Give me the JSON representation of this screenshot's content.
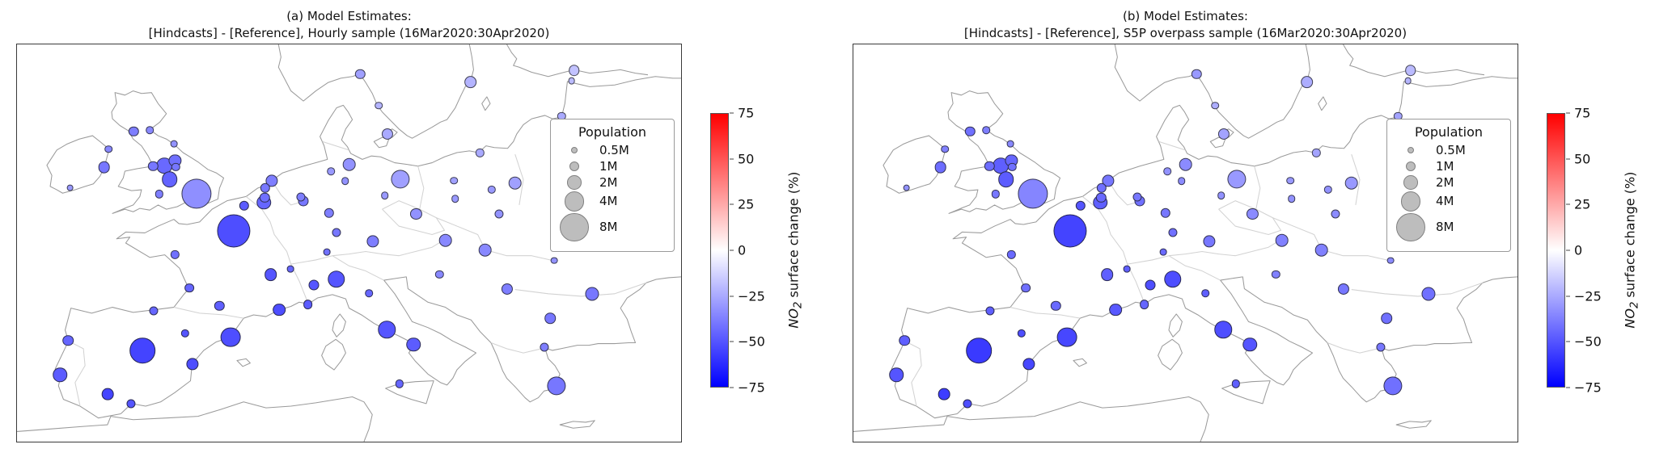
{
  "figure": {
    "panels": [
      {
        "id": "a",
        "title_line1": "(a) Model Estimates:",
        "title_line2": "[Hindcasts] - [Reference], Hourly sample (16Mar2020:30Apr2020)"
      },
      {
        "id": "b",
        "title_line1": "(b) Model Estimates:",
        "title_line2": "[Hindcasts] - [Reference], S5P overpass sample (16Mar2020:30Apr2020)"
      }
    ]
  },
  "legend": {
    "title": "Population",
    "items": [
      {
        "label": "0.5M",
        "pop": 0.5
      },
      {
        "label": "1M",
        "pop": 1
      },
      {
        "label": "2M",
        "pop": 2
      },
      {
        "label": "4M",
        "pop": 4
      },
      {
        "label": "8M",
        "pop": 8
      }
    ]
  },
  "colorbar": {
    "label_math": "NO",
    "label_sub": "2",
    "label_rest": " surface change (%)",
    "min": -75,
    "max": 75,
    "color_top": "#ff0000",
    "color_mid": "#ffffff",
    "color_bottom": "#0000ff",
    "ticks": [
      "75",
      "50",
      "25",
      "0",
      "−25",
      "−50",
      "−75"
    ]
  },
  "style": {
    "bubble_scale": 6.2
  },
  "chart_data": [
    {
      "id": "a",
      "type": "scatter",
      "subtype": "bubble-map",
      "title": "(a) Model Estimates: [Hindcasts] - [Reference], Hourly sample (16Mar2020:30Apr2020)",
      "region": "Europe",
      "size_legend_title": "Population",
      "size_legend_values_millions": [
        0.5,
        1,
        2,
        4,
        8
      ],
      "color_label": "NO2 surface change (%)",
      "color_range": [
        -75,
        75
      ],
      "colormap": "blue-white-red",
      "point_columns": [
        "x_pct_of_map",
        "y_pct_of_map",
        "population_millions",
        "no2_change_pct"
      ],
      "points": [
        [
          17.6,
          21.9,
          1.0,
          -38
        ],
        [
          20.0,
          21.6,
          0.6,
          -35
        ],
        [
          23.6,
          25.1,
          0.5,
          -32
        ],
        [
          23.8,
          29.3,
          1.5,
          -42
        ],
        [
          22.2,
          30.5,
          2.5,
          -44
        ],
        [
          20.5,
          30.7,
          1.0,
          -40
        ],
        [
          23.9,
          30.8,
          0.7,
          -40
        ],
        [
          23.0,
          34.0,
          2.5,
          -46
        ],
        [
          27.0,
          37.5,
          9.0,
          -33
        ],
        [
          21.4,
          37.7,
          0.7,
          -38
        ],
        [
          13.1,
          30.9,
          1.4,
          -40
        ],
        [
          13.8,
          26.4,
          0.6,
          -35
        ],
        [
          8.0,
          36.1,
          0.5,
          -30
        ],
        [
          32.6,
          47.0,
          11.0,
          -52
        ],
        [
          34.2,
          40.6,
          1.0,
          -48
        ],
        [
          23.8,
          52.9,
          0.7,
          -42
        ],
        [
          26.0,
          61.3,
          0.9,
          -45
        ],
        [
          30.5,
          65.8,
          1.0,
          -47
        ],
        [
          38.2,
          58.0,
          1.6,
          -50
        ],
        [
          39.5,
          66.8,
          1.6,
          -52
        ],
        [
          43.8,
          65.4,
          0.9,
          -48
        ],
        [
          37.2,
          39.8,
          2.0,
          -45
        ],
        [
          37.3,
          38.6,
          1.0,
          -42
        ],
        [
          37.4,
          36.1,
          1.0,
          -40
        ],
        [
          38.4,
          34.4,
          1.5,
          -38
        ],
        [
          43.1,
          39.5,
          1.1,
          -40
        ],
        [
          42.7,
          38.5,
          0.8,
          -38
        ],
        [
          47.0,
          42.5,
          1.0,
          -38
        ],
        [
          48.1,
          47.3,
          0.8,
          -40
        ],
        [
          53.6,
          49.5,
          1.5,
          -38
        ],
        [
          46.7,
          52.3,
          0.5,
          -42
        ],
        [
          41.2,
          56.5,
          0.5,
          -45
        ],
        [
          50.0,
          30.2,
          1.8,
          -32
        ],
        [
          47.3,
          31.9,
          0.6,
          -30
        ],
        [
          49.4,
          34.4,
          0.6,
          -32
        ],
        [
          57.7,
          33.9,
          3.5,
          -28
        ],
        [
          55.4,
          38.1,
          0.6,
          -30
        ],
        [
          60.1,
          42.6,
          1.3,
          -32
        ],
        [
          64.5,
          49.3,
          1.8,
          -35
        ],
        [
          55.8,
          22.6,
          1.3,
          -25
        ],
        [
          51.7,
          7.5,
          1.0,
          -28
        ],
        [
          68.3,
          9.5,
          1.6,
          -22
        ],
        [
          54.5,
          15.4,
          0.6,
          -22
        ],
        [
          83.9,
          6.5,
          1.2,
          -18
        ],
        [
          82.0,
          18.0,
          0.7,
          -25
        ],
        [
          84.7,
          26.1,
          0.5,
          -25
        ],
        [
          69.7,
          27.3,
          0.7,
          -25
        ],
        [
          75.0,
          34.9,
          1.8,
          -28
        ],
        [
          71.5,
          36.6,
          0.7,
          -30
        ],
        [
          72.6,
          42.7,
          0.8,
          -32
        ],
        [
          66.0,
          38.9,
          0.6,
          -30
        ],
        [
          65.8,
          34.3,
          0.6,
          -28
        ],
        [
          70.5,
          51.8,
          1.8,
          -35
        ],
        [
          63.6,
          57.9,
          0.7,
          -35
        ],
        [
          73.8,
          61.5,
          1.3,
          -38
        ],
        [
          86.6,
          62.8,
          1.9,
          -40
        ],
        [
          80.3,
          69.0,
          1.2,
          -40
        ],
        [
          79.4,
          76.3,
          0.8,
          -38
        ],
        [
          81.2,
          85.9,
          3.5,
          -40
        ],
        [
          48.1,
          59.1,
          3.0,
          -50
        ],
        [
          44.7,
          60.5,
          1.1,
          -50
        ],
        [
          53.0,
          62.6,
          0.6,
          -45
        ],
        [
          55.7,
          71.8,
          3.0,
          -50
        ],
        [
          59.7,
          75.6,
          2.0,
          -48
        ],
        [
          57.6,
          85.4,
          0.7,
          -45
        ],
        [
          18.9,
          77.1,
          6.5,
          -55
        ],
        [
          32.2,
          73.7,
          4.0,
          -52
        ],
        [
          26.4,
          80.5,
          1.5,
          -52
        ],
        [
          13.7,
          88.0,
          1.4,
          -55
        ],
        [
          17.2,
          90.4,
          0.8,
          -50
        ],
        [
          25.3,
          72.7,
          0.7,
          -50
        ],
        [
          20.6,
          67.0,
          0.8,
          -45
        ],
        [
          6.5,
          83.2,
          2.0,
          -48
        ],
        [
          7.7,
          74.5,
          1.2,
          -45
        ],
        [
          80.9,
          54.4,
          0.5,
          -32
        ],
        [
          89.9,
          29.0,
          1.8,
          -22
        ],
        [
          96.6,
          41.3,
          2.8,
          -28
        ],
        [
          81.9,
          43.5,
          0.7,
          -28
        ],
        [
          83.5,
          9.1,
          0.5,
          -20
        ]
      ]
    },
    {
      "id": "b",
      "type": "scatter",
      "subtype": "bubble-map",
      "title": "(b) Model Estimates: [Hindcasts] - [Reference], S5P overpass sample (16Mar2020:30Apr2020)",
      "region": "Europe",
      "size_legend_title": "Population",
      "size_legend_values_millions": [
        0.5,
        1,
        2,
        4,
        8
      ],
      "color_label": "NO2 surface change (%)",
      "color_range": [
        -75,
        75
      ],
      "colormap": "blue-white-red",
      "point_columns": [
        "x_pct_of_map",
        "y_pct_of_map",
        "population_millions",
        "no2_change_pct"
      ],
      "points": [
        [
          17.6,
          21.9,
          1.0,
          -42
        ],
        [
          20.0,
          21.6,
          0.6,
          -38
        ],
        [
          23.6,
          25.1,
          0.5,
          -35
        ],
        [
          23.8,
          29.3,
          1.5,
          -45
        ],
        [
          22.2,
          30.5,
          2.5,
          -47
        ],
        [
          20.5,
          30.7,
          1.0,
          -43
        ],
        [
          23.9,
          30.8,
          0.7,
          -42
        ],
        [
          23.0,
          34.0,
          2.5,
          -48
        ],
        [
          27.0,
          37.5,
          9.0,
          -36
        ],
        [
          21.4,
          37.7,
          0.7,
          -40
        ],
        [
          13.1,
          30.9,
          1.4,
          -43
        ],
        [
          13.8,
          26.4,
          0.6,
          -37
        ],
        [
          8.0,
          36.1,
          0.5,
          -32
        ],
        [
          32.6,
          47.0,
          11.0,
          -55
        ],
        [
          34.2,
          40.6,
          1.0,
          -50
        ],
        [
          23.8,
          52.9,
          0.7,
          -44
        ],
        [
          26.0,
          61.3,
          0.9,
          -42
        ],
        [
          30.5,
          65.8,
          1.0,
          -44
        ],
        [
          38.2,
          58.0,
          1.6,
          -47
        ],
        [
          39.5,
          66.8,
          1.6,
          -49
        ],
        [
          43.8,
          65.4,
          0.9,
          -45
        ],
        [
          37.2,
          39.8,
          2.0,
          -47
        ],
        [
          37.3,
          38.6,
          1.0,
          -44
        ],
        [
          37.4,
          36.1,
          1.0,
          -42
        ],
        [
          38.4,
          34.4,
          1.5,
          -40
        ],
        [
          43.1,
          39.5,
          1.1,
          -42
        ],
        [
          42.7,
          38.5,
          0.8,
          -40
        ],
        [
          47.0,
          42.5,
          1.0,
          -40
        ],
        [
          48.1,
          47.3,
          0.8,
          -42
        ],
        [
          53.6,
          49.5,
          1.5,
          -40
        ],
        [
          46.7,
          52.3,
          0.5,
          -44
        ],
        [
          41.2,
          56.5,
          0.5,
          -47
        ],
        [
          50.0,
          30.2,
          1.8,
          -34
        ],
        [
          47.3,
          31.9,
          0.6,
          -32
        ],
        [
          49.4,
          34.4,
          0.6,
          -34
        ],
        [
          57.7,
          33.9,
          3.5,
          -30
        ],
        [
          55.4,
          38.1,
          0.6,
          -32
        ],
        [
          60.1,
          42.6,
          1.3,
          -34
        ],
        [
          64.5,
          49.3,
          1.8,
          -37
        ],
        [
          55.8,
          22.6,
          1.3,
          -27
        ],
        [
          51.7,
          7.5,
          1.0,
          -30
        ],
        [
          68.3,
          9.5,
          1.6,
          -24
        ],
        [
          54.5,
          15.4,
          0.6,
          -24
        ],
        [
          83.9,
          6.5,
          1.2,
          -20
        ],
        [
          82.0,
          18.0,
          0.7,
          -27
        ],
        [
          84.7,
          26.1,
          0.5,
          -27
        ],
        [
          69.7,
          27.3,
          0.7,
          -27
        ],
        [
          75.0,
          34.9,
          1.8,
          -30
        ],
        [
          71.5,
          36.6,
          0.7,
          -32
        ],
        [
          72.6,
          42.7,
          0.8,
          -34
        ],
        [
          66.0,
          38.9,
          0.6,
          -32
        ],
        [
          65.8,
          34.3,
          0.6,
          -30
        ],
        [
          70.5,
          51.8,
          1.8,
          -37
        ],
        [
          63.6,
          57.9,
          0.7,
          -37
        ],
        [
          73.8,
          61.5,
          1.3,
          -40
        ],
        [
          86.6,
          62.8,
          1.9,
          -42
        ],
        [
          80.3,
          69.0,
          1.2,
          -42
        ],
        [
          79.4,
          76.3,
          0.8,
          -40
        ],
        [
          81.2,
          85.9,
          3.5,
          -42
        ],
        [
          48.1,
          59.1,
          3.0,
          -52
        ],
        [
          44.7,
          60.5,
          1.1,
          -52
        ],
        [
          53.0,
          62.6,
          0.6,
          -47
        ],
        [
          55.7,
          71.8,
          3.0,
          -52
        ],
        [
          59.7,
          75.6,
          2.0,
          -50
        ],
        [
          57.6,
          85.4,
          0.7,
          -47
        ],
        [
          18.9,
          77.1,
          6.5,
          -58
        ],
        [
          32.2,
          73.7,
          4.0,
          -54
        ],
        [
          26.4,
          80.5,
          1.5,
          -54
        ],
        [
          13.7,
          88.0,
          1.4,
          -57
        ],
        [
          17.2,
          90.4,
          0.8,
          -52
        ],
        [
          25.3,
          72.7,
          0.7,
          -52
        ],
        [
          20.6,
          67.0,
          0.8,
          -47
        ],
        [
          6.5,
          83.2,
          2.0,
          -50
        ],
        [
          7.7,
          74.5,
          1.2,
          -47
        ],
        [
          80.9,
          54.4,
          0.5,
          -34
        ],
        [
          89.9,
          29.0,
          1.8,
          -24
        ],
        [
          96.6,
          41.3,
          2.8,
          -30
        ],
        [
          81.9,
          43.5,
          0.7,
          -30
        ],
        [
          83.5,
          9.1,
          0.5,
          -22
        ]
      ]
    }
  ]
}
